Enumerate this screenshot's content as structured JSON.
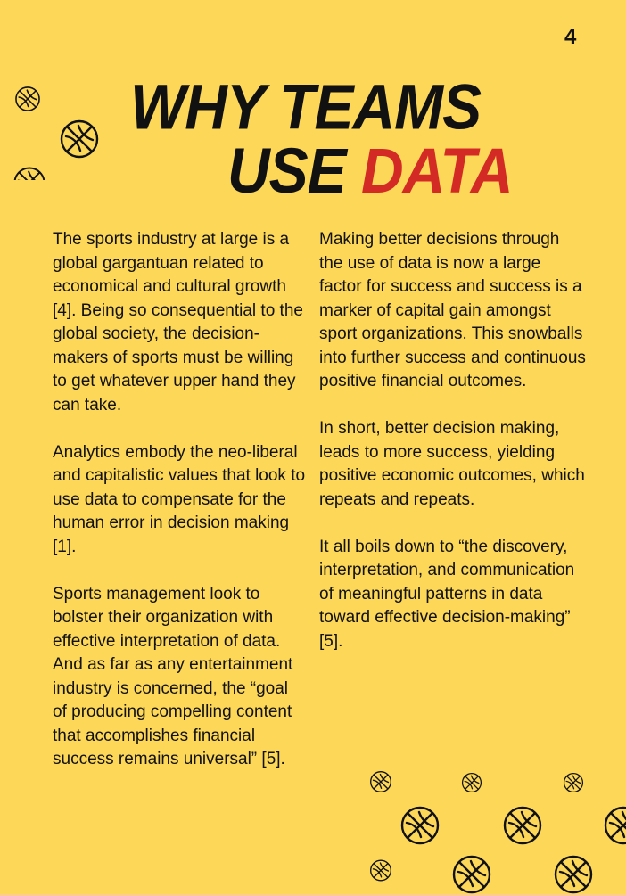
{
  "page_number": "4",
  "title": {
    "line1": "WHY TEAMS",
    "line2_prefix": "USE ",
    "line2_accent": "DATA"
  },
  "colors": {
    "background": "#FDD757",
    "accent": "#D42A26",
    "text": "#111111"
  },
  "left_column": [
    "The sports industry at large is a global gargantuan related to economical and cultural growth [4]. Being so consequential to the global society, the decision-makers of sports must be willing to get whatever upper hand they can take.",
    "Analytics embody the neo-liberal and capitalistic values that look to use data to compensate for the human error in decision making [1].",
    "Sports management look to bolster their organization with effective interpretation of data. And as far as any entertainment industry is concerned, the “goal of producing compelling content that accomplishes financial success remains universal” [5]."
  ],
  "right_column": [
    "Making better decisions through the use of data is now a large factor for success and success is a marker of capital gain amongst sport organizations. This snowballs into further success and continuous positive financial outcomes.",
    "In short, better decision making, leads to more success, yielding positive economic outcomes, which repeats and repeats.",
    "It all boils down to “the discovery, interpretation, and communication of meaningful patterns in data toward effective decision-making” [5]."
  ],
  "decorations": {
    "icon": "basketball-icon"
  }
}
